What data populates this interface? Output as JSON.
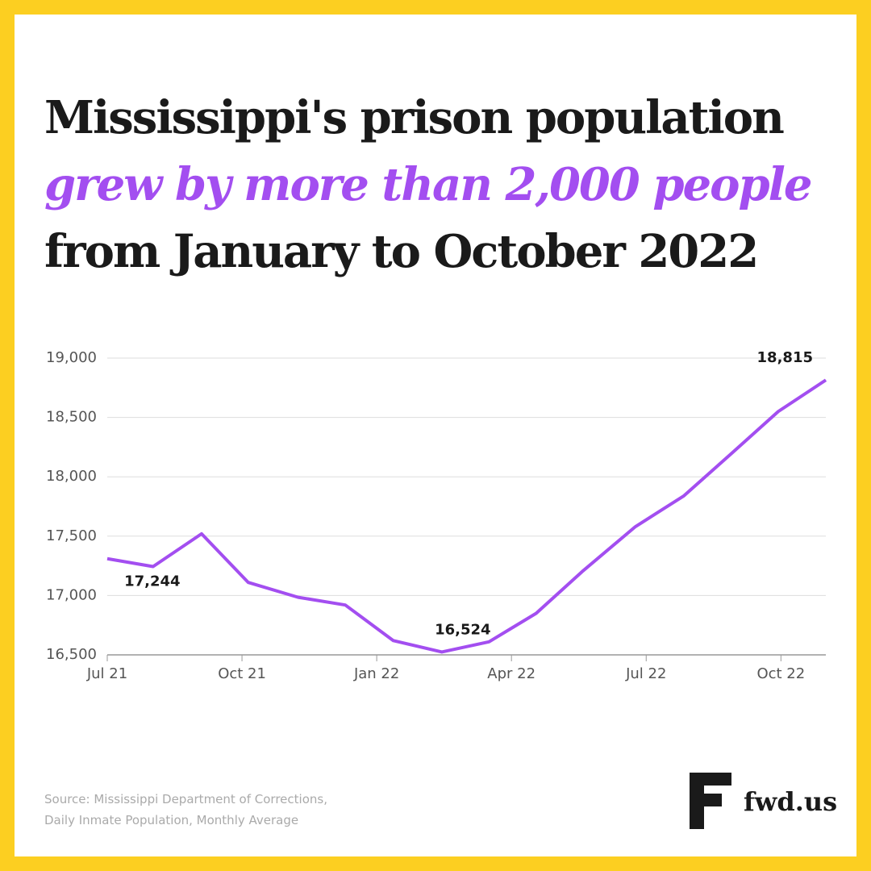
{
  "chart_data": {
    "type": "line",
    "title_lines": [
      "Mississippi's prison population",
      "grew by more than 2,000 people",
      "from January to October 2022"
    ],
    "x": [
      0,
      1.02,
      2.1,
      3.14,
      4.25,
      5.3,
      6.37,
      7.45,
      8.5,
      9.55,
      10.57,
      11.76,
      12.84,
      13.91,
      14.94,
      16
    ],
    "xlim": [
      0,
      16
    ],
    "xticks": [
      {
        "value": 0,
        "label": "Jul 21"
      },
      {
        "value": 3,
        "label": "Oct 21"
      },
      {
        "value": 6,
        "label": "Jan 22"
      },
      {
        "value": 9,
        "label": "Apr 22"
      },
      {
        "value": 12,
        "label": "Jul 22"
      },
      {
        "value": 15,
        "label": "Oct 22"
      }
    ],
    "series": [
      {
        "color": "#a34ef0",
        "values": [
          17310,
          17244,
          17520,
          17110,
          16985,
          16920,
          16620,
          16524,
          16610,
          16850,
          17200,
          17580,
          17840,
          18200,
          18550,
          18815
        ],
        "value_labels": [
          null,
          "17,244",
          null,
          null,
          null,
          null,
          null,
          "16,524",
          null,
          null,
          null,
          null,
          null,
          null,
          null,
          "18,815"
        ]
      }
    ],
    "ylim": [
      16500,
      19000
    ],
    "yticks": [
      {
        "value": 16500,
        "label": "16,500"
      },
      {
        "value": 17000,
        "label": "17,000"
      },
      {
        "value": 17500,
        "label": "17,500"
      },
      {
        "value": 18000,
        "label": "18,000"
      },
      {
        "value": 18500,
        "label": "18,500"
      },
      {
        "value": 19000,
        "label": "19,000"
      }
    ],
    "grid": true,
    "source_lines": [
      "Source: Mississippi Department of Corrections,",
      "Daily Inmate Population, Monthly Average"
    ],
    "logo": "fwd.us"
  }
}
